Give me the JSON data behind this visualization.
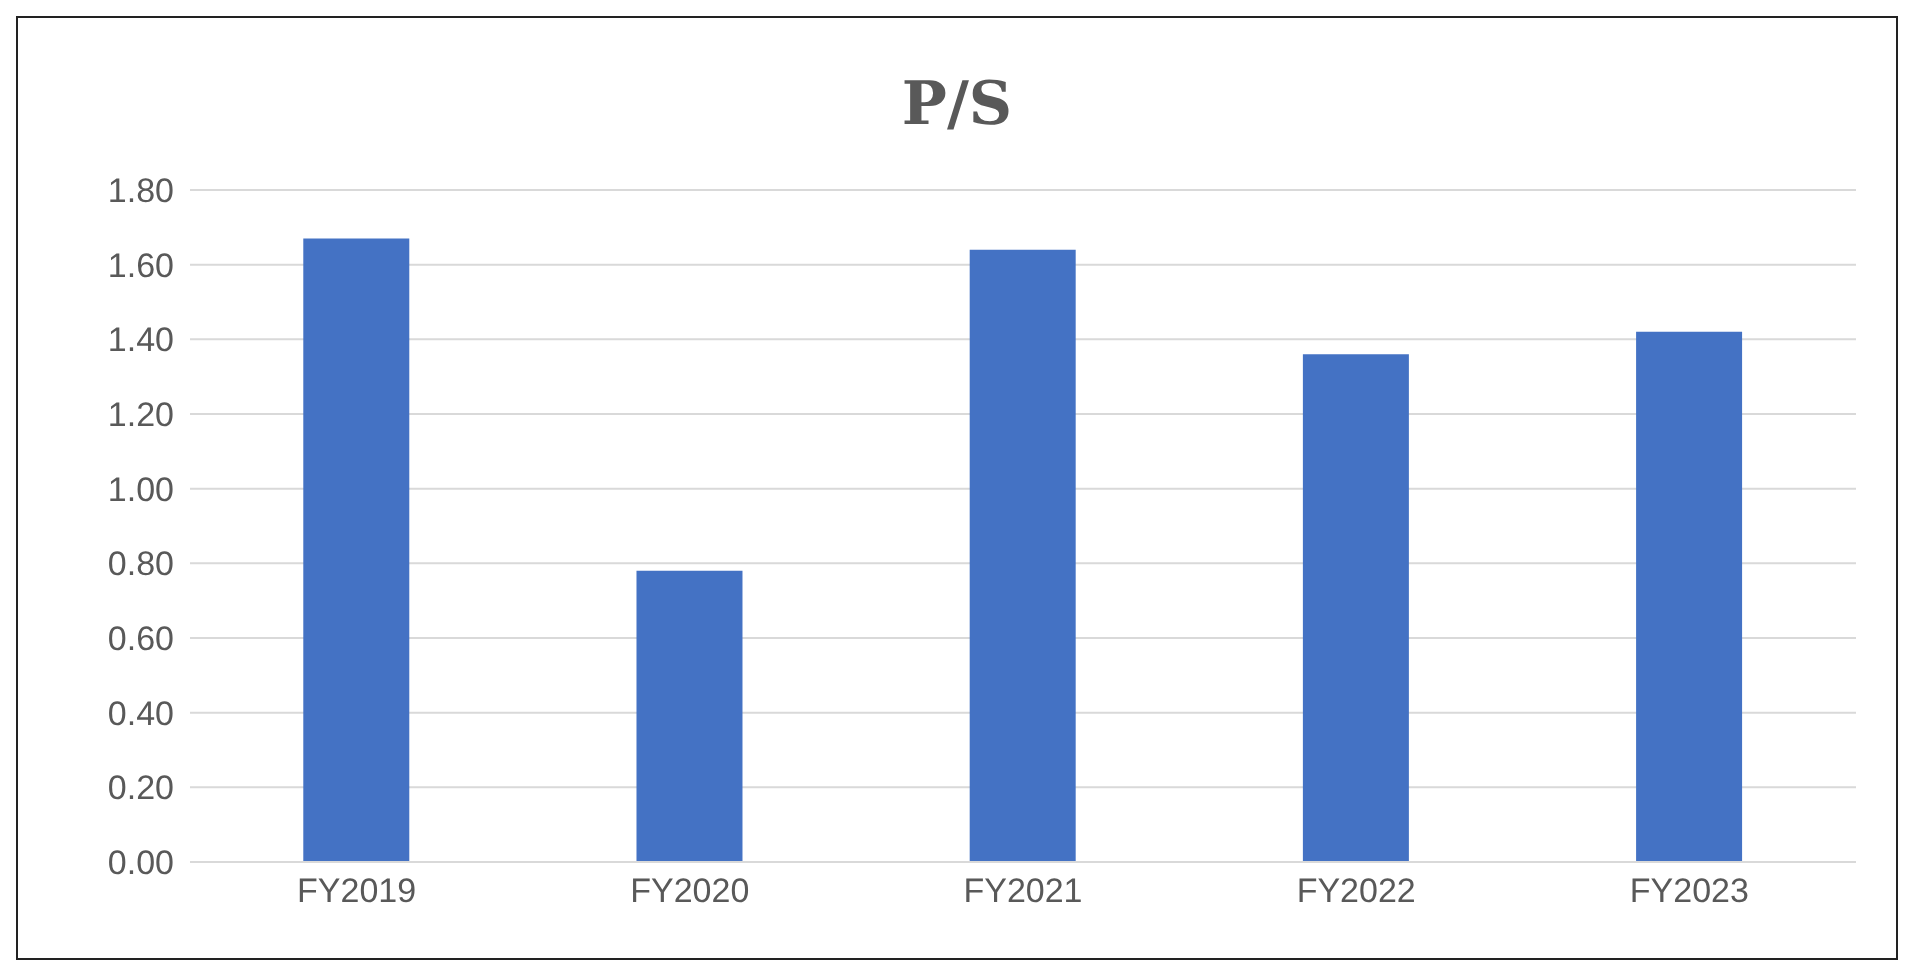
{
  "chart_data": {
    "type": "bar",
    "title": "P/S",
    "categories": [
      "FY2019",
      "FY2020",
      "FY2021",
      "FY2022",
      "FY2023"
    ],
    "values": [
      1.67,
      0.78,
      1.64,
      1.36,
      1.42
    ],
    "color": "#4472c4",
    "ylim": [
      0,
      1.8
    ],
    "yticks": [
      {
        "value": 0,
        "label": "0.00"
      },
      {
        "value": 0.2,
        "label": "0.20"
      },
      {
        "value": 0.4,
        "label": "0.40"
      },
      {
        "value": 0.6,
        "label": "0.60"
      },
      {
        "value": 0.8,
        "label": "0.80"
      },
      {
        "value": 1,
        "label": "1.00"
      },
      {
        "value": 1.2,
        "label": "1.20"
      },
      {
        "value": 1.4,
        "label": "1.40"
      },
      {
        "value": 1.6,
        "label": "1.60"
      },
      {
        "value": 1.8,
        "label": "1.80"
      }
    ],
    "grid": "y",
    "legend": false
  }
}
